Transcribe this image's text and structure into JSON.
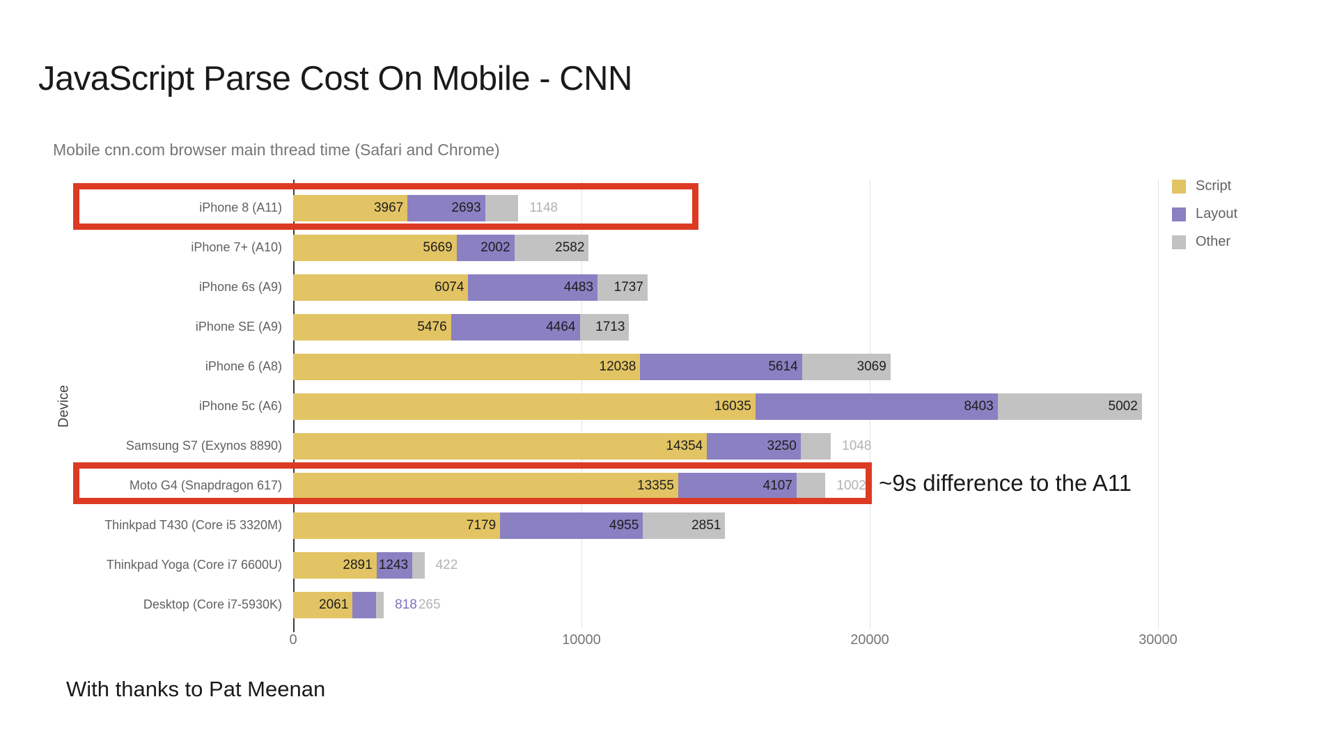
{
  "page": {
    "title": "JavaScript Parse Cost On Mobile - CNN",
    "footer": "With thanks to Pat Meenan",
    "annotation": "~9s difference to the A11"
  },
  "chart_data": {
    "type": "bar",
    "orientation": "horizontal",
    "stacked": true,
    "title": "Mobile cnn.com browser main thread time (Safari and Chrome)",
    "xlabel": "",
    "ylabel": "Device",
    "x_ticks": [
      0,
      10000,
      20000,
      30000
    ],
    "xlim": [
      0,
      31000
    ],
    "grid": true,
    "legend_position": "top-right",
    "series": [
      {
        "key": "script",
        "name": "Script",
        "color": "#e2c464"
      },
      {
        "key": "layout",
        "name": "Layout",
        "color": "#8a80c2"
      },
      {
        "key": "other",
        "name": "Other",
        "color": "#c2c2c2"
      }
    ],
    "outside_label_colors": {
      "script": "#d4af50",
      "layout": "#7c72bd",
      "other": "#b3b3b3"
    },
    "categories": [
      "iPhone 8 (A11)",
      "iPhone 7+ (A10)",
      "iPhone 6s (A9)",
      "iPhone SE (A9)",
      "iPhone 6 (A8)",
      "iPhone 5c (A6)",
      "Samsung S7 (Exynos 8890)",
      "Moto G4 (Snapdragon 617)",
      "Thinkpad T430 (Core i5 3320M)",
      "Thinkpad Yoga (Core i7 6600U)",
      "Desktop (Core i7-5930K)"
    ],
    "rows": [
      {
        "device": "iPhone 8 (A11)",
        "script": 3967,
        "layout": 2693,
        "other": 1148,
        "outside_labels": [
          "other"
        ],
        "highlighted": true
      },
      {
        "device": "iPhone 7+ (A10)",
        "script": 5669,
        "layout": 2002,
        "other": 2582,
        "outside_labels": []
      },
      {
        "device": "iPhone 6s (A9)",
        "script": 6074,
        "layout": 4483,
        "other": 1737,
        "outside_labels": []
      },
      {
        "device": "iPhone SE (A9)",
        "script": 5476,
        "layout": 4464,
        "other": 1713,
        "outside_labels": []
      },
      {
        "device": "iPhone 6 (A8)",
        "script": 12038,
        "layout": 5614,
        "other": 3069,
        "outside_labels": []
      },
      {
        "device": "iPhone 5c (A6)",
        "script": 16035,
        "layout": 8403,
        "other": 5002,
        "outside_labels": []
      },
      {
        "device": "Samsung S7 (Exynos 8890)",
        "script": 14354,
        "layout": 3250,
        "other": 1048,
        "outside_labels": [
          "other"
        ]
      },
      {
        "device": "Moto G4 (Snapdragon 617)",
        "script": 13355,
        "layout": 4107,
        "other": 1002,
        "outside_labels": [
          "other"
        ],
        "highlighted": true
      },
      {
        "device": "Thinkpad T430 (Core i5 3320M)",
        "script": 7179,
        "layout": 4955,
        "other": 2851,
        "outside_labels": []
      },
      {
        "device": "Thinkpad Yoga (Core i7 6600U)",
        "script": 2891,
        "layout": 1243,
        "other": 422,
        "outside_labels": [
          "other"
        ]
      },
      {
        "device": "Desktop (Core i7-5930K)",
        "script": 2061,
        "layout": 818,
        "other": 265,
        "outside_labels": [
          "layout",
          "other"
        ]
      }
    ]
  }
}
